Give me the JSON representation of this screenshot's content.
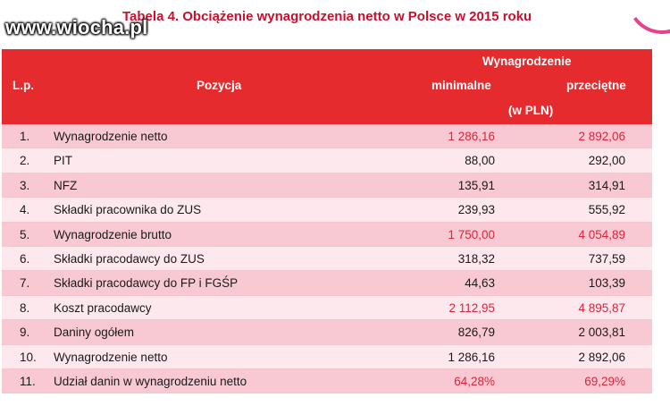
{
  "watermark": "www.wiocha.pl",
  "title": "Tabela 4. Obciążenie wynagrodzenia netto w Polsce w 2015 roku",
  "header": {
    "lp": "L.p.",
    "pozycja": "Pozycja",
    "wynagrodzenie": "Wynagrodzenie",
    "minimalne": "minimalne",
    "przecietne": "przeciętne",
    "unit": "(w PLN)"
  },
  "rows": [
    {
      "lp": "1.",
      "pozycja": "Wynagrodzenie netto",
      "minimalne": "1 286,16",
      "przecietne": "2 892,06"
    },
    {
      "lp": "2.",
      "pozycja": "PIT",
      "minimalne": "88,00",
      "przecietne": "292,00"
    },
    {
      "lp": "3.",
      "pozycja": "NFZ",
      "minimalne": "135,91",
      "przecietne": "314,91"
    },
    {
      "lp": "4.",
      "pozycja": "Składki pracownika do ZUS",
      "minimalne": "239,93",
      "przecietne": "555,92"
    },
    {
      "lp": "5.",
      "pozycja": "Wynagrodzenie brutto",
      "minimalne": "1 750,00",
      "przecietne": "4 054,89"
    },
    {
      "lp": "6.",
      "pozycja": "Składki pracodawcy do ZUS",
      "minimalne": "318,32",
      "przecietne": "737,59"
    },
    {
      "lp": "7.",
      "pozycja": "Składki pracodawcy do FP i FGŚP",
      "minimalne": "44,63",
      "przecietne": "103,39"
    },
    {
      "lp": "8.",
      "pozycja": "Koszt pracodawcy",
      "minimalne": "2 112,95",
      "przecietne": "4 895,87"
    },
    {
      "lp": "9.",
      "pozycja": "Daniny ogółem",
      "minimalne": "826,79",
      "przecietne": "2 003,81"
    },
    {
      "lp": "10.",
      "pozycja": "Wynagrodzenie netto",
      "minimalne": "1 286,16",
      "przecietne": "2 892,06"
    },
    {
      "lp": "11.",
      "pozycja": "Udział danin w wynagrodzeniu netto",
      "minimalne": "64,28%",
      "przecietne": "69,29%"
    }
  ],
  "highlight_color": "#d7263d",
  "header_color": "#e52b2e"
}
